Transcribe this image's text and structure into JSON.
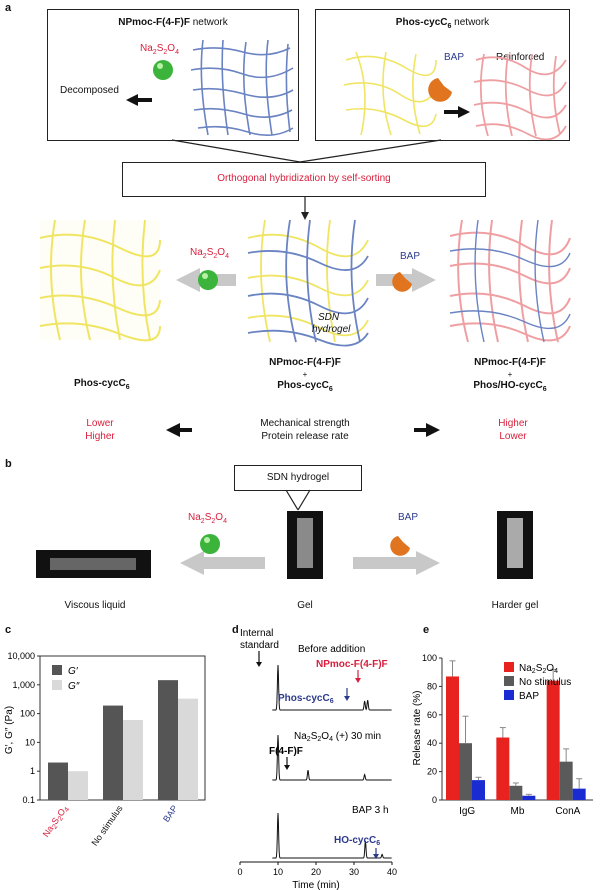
{
  "panel_a": {
    "letter": "a",
    "box_left": {
      "title_bold": "NPmoc-F(4-F)F",
      "title_rest": " network",
      "reagent": "Na2S2O4",
      "caption": "Decomposed"
    },
    "box_right": {
      "title_bold": "Phos-cycC6",
      "title_rest": " network",
      "reagent": "BAP",
      "caption": "Reinforced"
    },
    "center_box": "Orthogonal hybridization by self-sorting",
    "left_reagent": "Na2S2O4",
    "right_reagent": "BAP",
    "sdn_label_1": "SDN",
    "sdn_label_2": "hydrogel",
    "left_compound": "Phos-cycC6",
    "center_compound_1": "NPmoc-F(4-F)F",
    "plus": "+",
    "center_compound_2": "Phos-cycC6",
    "right_compound_1": "NPmoc-F(4-F)F",
    "right_compound_2": "Phos/HO-cycC6",
    "props": [
      "Mechanical strength",
      "Protein release rate"
    ],
    "left_values": [
      "Lower",
      "Higher"
    ],
    "right_values": [
      "Higher",
      "Lower"
    ]
  },
  "panel_b": {
    "letter": "b",
    "title_box": "SDN hydrogel",
    "left_reagent": "Na2S2O4",
    "right_reagent": "BAP",
    "left_caption": "Viscous liquid",
    "center_caption": "Gel",
    "right_caption": "Harder gel"
  },
  "panel_c": {
    "letter": "c",
    "chart_data": {
      "type": "bar",
      "yscale": "log",
      "ylabel": "G′, G″ (Pa)",
      "ylim": [
        0.1,
        10000
      ],
      "yticks": [
        "10,000",
        "1,000",
        "100",
        "10",
        "1",
        "0.1"
      ],
      "categories": [
        "Na2S2O4",
        "No stimulus",
        "BAP"
      ],
      "series": [
        {
          "name": "G′",
          "values": [
            2,
            190,
            1450
          ],
          "color": "#555555"
        },
        {
          "name": "G″",
          "values": [
            1,
            60,
            330
          ],
          "color": "#d9d9d9"
        }
      ],
      "legend": "top-left"
    }
  },
  "panel_d": {
    "letter": "d",
    "annotations": {
      "internal_standard_1": "Internal",
      "internal_standard_2": "standard",
      "before_addition": "Before addition",
      "npmoc": "NPmoc-F(4-F)F",
      "phos": "Phos-cycC6",
      "na_label": "Na2S2O4 (+) 30 min",
      "ff": "F(4-F)F",
      "bap": "BAP 3 h",
      "ho": "HO-cycC6"
    },
    "chart_data": {
      "type": "line",
      "xlabel": "Time (min)",
      "xlim": [
        0,
        40
      ],
      "xticks": [
        0,
        10,
        20,
        30,
        40
      ],
      "traces": [
        {
          "peaks": [
            [
              10.0,
              1.0
            ],
            [
              32.8,
              0.2
            ],
            [
              33.6,
              0.22
            ]
          ]
        },
        {
          "peaks": [
            [
              10.0,
              1.0
            ],
            [
              17.9,
              0.22
            ],
            [
              32.8,
              0.12
            ]
          ]
        },
        {
          "peaks": [
            [
              10.0,
              1.0
            ],
            [
              33.0,
              0.38
            ],
            [
              37.4,
              0.08
            ]
          ]
        }
      ]
    }
  },
  "panel_e": {
    "letter": "e",
    "chart_data": {
      "type": "bar",
      "ylabel": "Release rate (%)",
      "ylim": [
        0,
        100
      ],
      "yticks": [
        0,
        20,
        40,
        60,
        80,
        100
      ],
      "categories": [
        "IgG",
        "Mb",
        "ConA"
      ],
      "series": [
        {
          "name": "Na2S2O4",
          "values": [
            87,
            44,
            84
          ],
          "errors": [
            11,
            7,
            8
          ],
          "color": "#e8231f"
        },
        {
          "name": "No stimulus",
          "values": [
            40,
            10,
            27
          ],
          "errors": [
            19,
            2,
            9
          ],
          "color": "#5a5a5a"
        },
        {
          "name": "BAP",
          "values": [
            14,
            3,
            8
          ],
          "errors": [
            2,
            1,
            7
          ],
          "color": "#1a2bd1"
        }
      ],
      "legend": "top-right"
    }
  }
}
